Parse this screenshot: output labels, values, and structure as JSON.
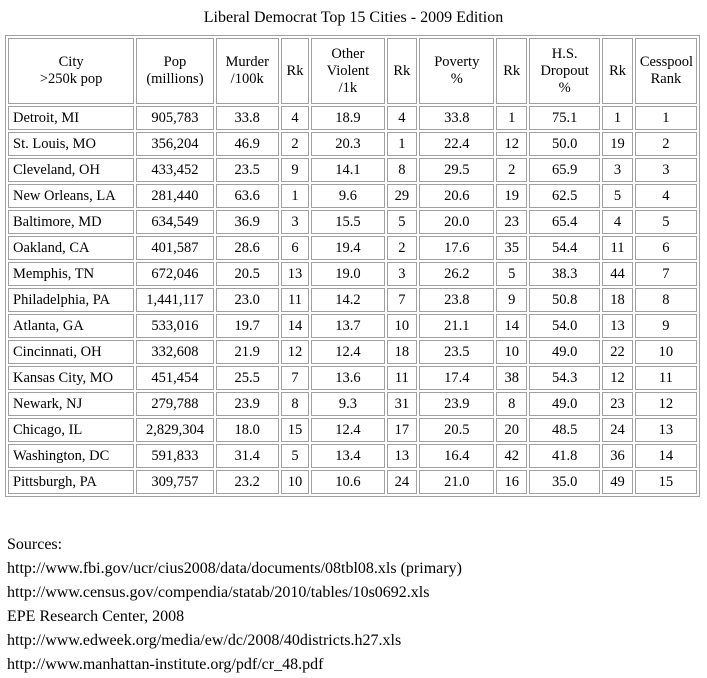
{
  "title": "Liberal Democrat Top 15 Cities - 2009 Edition",
  "headers": [
    [
      "City",
      ">250k pop"
    ],
    [
      "Pop",
      "(millions)"
    ],
    [
      "Murder",
      "/100k"
    ],
    [
      "Rk"
    ],
    [
      "Other",
      "Violent",
      "/1k"
    ],
    [
      "Rk"
    ],
    [
      "Poverty",
      "%"
    ],
    [
      "Rk"
    ],
    [
      "H.S.",
      "Dropout",
      "%"
    ],
    [
      "Rk"
    ],
    [
      "Cesspool",
      "Rank"
    ]
  ],
  "rows": [
    [
      "Detroit, MI",
      "905,783",
      "33.8",
      "4",
      "18.9",
      "4",
      "33.8",
      "1",
      "75.1",
      "1",
      "1"
    ],
    [
      "St. Louis, MO",
      "356,204",
      "46.9",
      "2",
      "20.3",
      "1",
      "22.4",
      "12",
      "50.0",
      "19",
      "2"
    ],
    [
      "Cleveland, OH",
      "433,452",
      "23.5",
      "9",
      "14.1",
      "8",
      "29.5",
      "2",
      "65.9",
      "3",
      "3"
    ],
    [
      "New Orleans, LA",
      "281,440",
      "63.6",
      "1",
      "9.6",
      "29",
      "20.6",
      "19",
      "62.5",
      "5",
      "4"
    ],
    [
      "Baltimore, MD",
      "634,549",
      "36.9",
      "3",
      "15.5",
      "5",
      "20.0",
      "23",
      "65.4",
      "4",
      "5"
    ],
    [
      "Oakland, CA",
      "401,587",
      "28.6",
      "6",
      "19.4",
      "2",
      "17.6",
      "35",
      "54.4",
      "11",
      "6"
    ],
    [
      "Memphis, TN",
      "672,046",
      "20.5",
      "13",
      "19.0",
      "3",
      "26.2",
      "5",
      "38.3",
      "44",
      "7"
    ],
    [
      "Philadelphia, PA",
      "1,441,117",
      "23.0",
      "11",
      "14.2",
      "7",
      "23.8",
      "9",
      "50.8",
      "18",
      "8"
    ],
    [
      "Atlanta, GA",
      "533,016",
      "19.7",
      "14",
      "13.7",
      "10",
      "21.1",
      "14",
      "54.0",
      "13",
      "9"
    ],
    [
      "Cincinnati, OH",
      "332,608",
      "21.9",
      "12",
      "12.4",
      "18",
      "23.5",
      "10",
      "49.0",
      "22",
      "10"
    ],
    [
      "Kansas City, MO",
      "451,454",
      "25.5",
      "7",
      "13.6",
      "11",
      "17.4",
      "38",
      "54.3",
      "12",
      "11"
    ],
    [
      "Newark, NJ",
      "279,788",
      "23.9",
      "8",
      "9.3",
      "31",
      "23.9",
      "8",
      "49.0",
      "23",
      "12"
    ],
    [
      "Chicago, IL",
      "2,829,304",
      "18.0",
      "15",
      "12.4",
      "17",
      "20.5",
      "20",
      "48.5",
      "24",
      "13"
    ],
    [
      "Washington, DC",
      "591,833",
      "31.4",
      "5",
      "13.4",
      "13",
      "16.4",
      "42",
      "41.8",
      "36",
      "14"
    ],
    [
      "Pittsburgh, PA",
      "309,757",
      "23.2",
      "10",
      "10.6",
      "24",
      "21.0",
      "16",
      "35.0",
      "49",
      "15"
    ]
  ],
  "sources": {
    "heading": "Sources:",
    "lines": [
      "http://www.fbi.gov/ucr/cius2008/data/documents/08tbl08.xls (primary)",
      "http://www.census.gov/compendia/statab/2010/tables/10s0692.xls",
      "EPE Research Center, 2008",
      "http://www.edweek.org/media/ew/dc/2008/40districts.h27.xls",
      "http://www.manhattan-institute.org/pdf/cr_48.pdf"
    ]
  }
}
